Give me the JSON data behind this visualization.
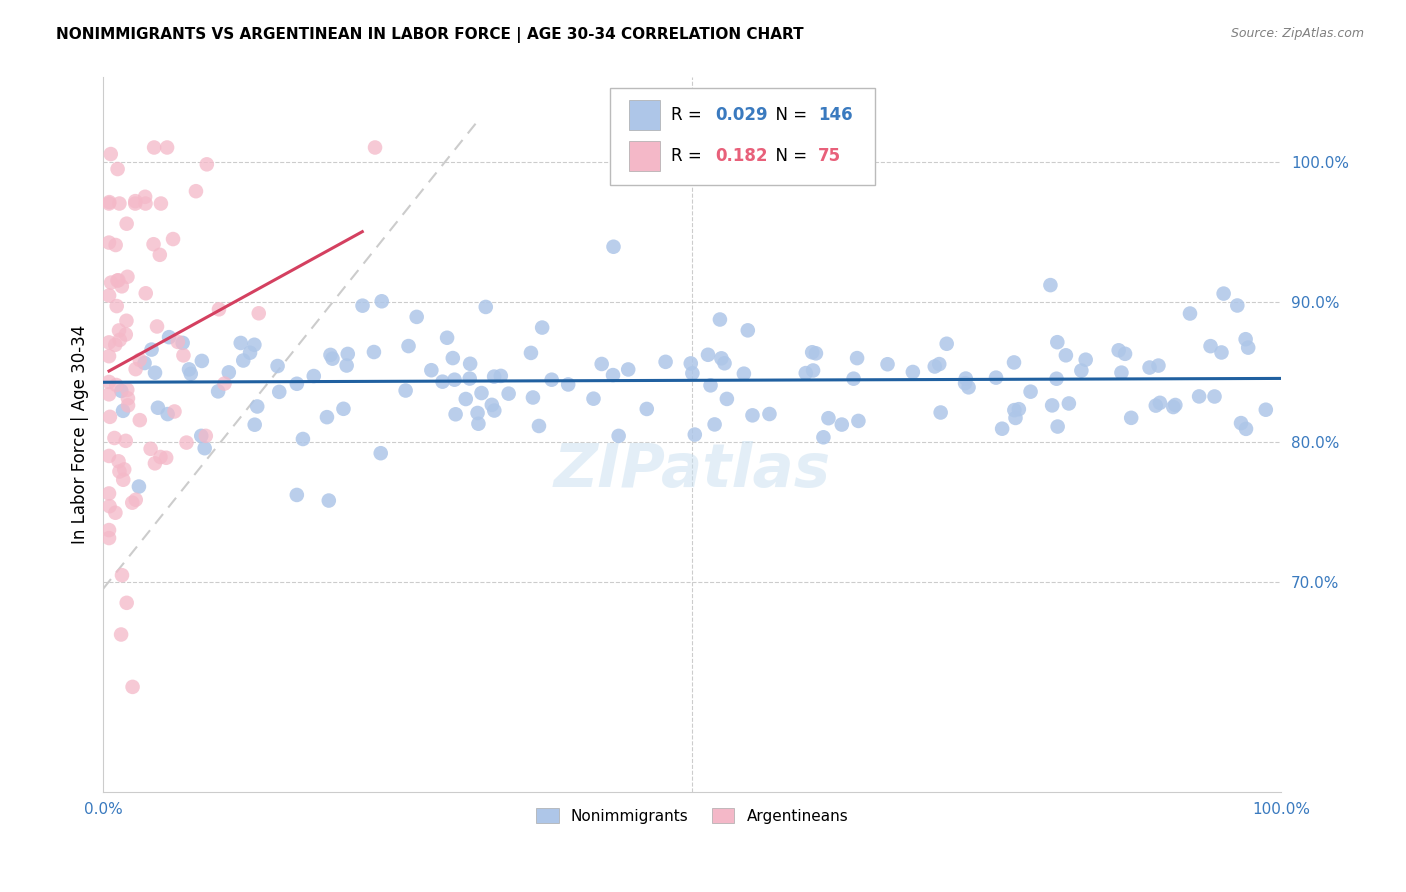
{
  "title": "NONIMMIGRANTS VS ARGENTINEAN IN LABOR FORCE | AGE 30-34 CORRELATION CHART",
  "source": "Source: ZipAtlas.com",
  "ylabel": "In Labor Force | Age 30-34",
  "R_nonimm": 0.029,
  "N_nonimm": 146,
  "R_arg": 0.182,
  "N_arg": 75,
  "blue_color": "#3a7abf",
  "pink_color": "#e8607a",
  "scatter_blue": "#aec6e8",
  "scatter_pink": "#f4b8c8",
  "trendline_blue_color": "#2060a0",
  "trendline_pink_color": "#d44060",
  "diagonal_color": "#cccccc",
  "watermark": "ZIPatlas",
  "ylim_low": 0.55,
  "ylim_high": 1.06,
  "xlim_low": 0.0,
  "xlim_high": 1.0,
  "yticks_right": [
    0.7,
    0.8,
    0.9,
    1.0
  ],
  "ytick_labels_right": [
    "70.0%",
    "80.0%",
    "90.0%",
    "100.0%"
  ],
  "xticks": [
    0.0,
    0.1,
    0.2,
    0.3,
    0.4,
    0.5,
    0.6,
    0.7,
    0.8,
    0.9,
    1.0
  ],
  "xtick_labels": [
    "0.0%",
    "",
    "",
    "",
    "",
    "",
    "",
    "",
    "",
    "",
    "100.0%"
  ]
}
